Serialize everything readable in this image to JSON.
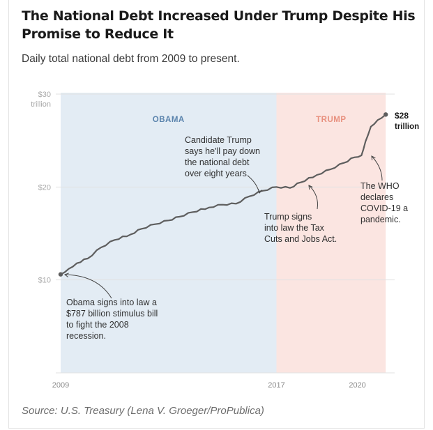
{
  "header": {
    "title": "The National Debt Increased Under Trump Despite His Promise to Reduce It",
    "subtitle": "Daily total national debt from 2009 to present."
  },
  "footer": {
    "source": "Source: U.S. Treasury (Lena V. Groeger/ProPublica)"
  },
  "colors": {
    "obama_shade": "#e3ecf4",
    "trump_shade": "#fbe5e1",
    "obama_label": "#5b84ad",
    "trump_label": "#e8907e",
    "line": "#5e5e5e",
    "grid": "#e2e2e2"
  },
  "chart_data": {
    "type": "line",
    "title": "",
    "xlabel": "",
    "ylabel": "",
    "xlim": [
      2009.0,
      2021.2
    ],
    "ylim": [
      0,
      30
    ],
    "y_ticks": [
      {
        "value": 30,
        "label": "$30",
        "sublabel": "trillion"
      },
      {
        "value": 20,
        "label": "$20"
      },
      {
        "value": 10,
        "label": "$10"
      }
    ],
    "x_ticks": [
      {
        "value": 2009.0,
        "label": "2009"
      },
      {
        "value": 2017.0,
        "label": "2017"
      },
      {
        "value": 2020.0,
        "label": "2020"
      }
    ],
    "regions": [
      {
        "label": "OBAMA",
        "start": 2009.0,
        "end": 2017.0
      },
      {
        "label": "TRUMP",
        "start": 2017.0,
        "end": 2021.05
      }
    ],
    "series": [
      {
        "x": [
          2009.0,
          2009.3,
          2009.6,
          2010.0,
          2010.5,
          2011.0,
          2011.6,
          2012.0,
          2012.5,
          2013.0,
          2013.4,
          2013.9,
          2014.5,
          2015.0,
          2015.5,
          2016.0,
          2016.5,
          2017.0,
          2017.5,
          2017.9,
          2018.5,
          2019.0,
          2019.5,
          2019.9,
          2020.15,
          2020.3,
          2020.5,
          2020.75,
          2021.05
        ],
        "y": [
          10.6,
          11.2,
          11.8,
          12.3,
          13.5,
          14.3,
          14.9,
          15.5,
          16.0,
          16.4,
          16.8,
          17.3,
          17.8,
          18.1,
          18.2,
          19.0,
          19.6,
          20.0,
          19.9,
          20.5,
          21.3,
          21.9,
          22.6,
          23.2,
          23.4,
          24.9,
          26.5,
          27.2,
          27.8
        ]
      }
    ],
    "end_label": {
      "line1": "$28",
      "line2": "trillion"
    },
    "annotations": [
      {
        "lines": [
          "Obama signs into law a",
          "$787 billion stimulus bill",
          "to fight the 2008",
          "recession."
        ]
      },
      {
        "lines": [
          "Candidate Trump",
          "says he'll pay down",
          "the national debt",
          "over eight years."
        ]
      },
      {
        "lines": [
          "Trump signs",
          "into law the Tax",
          "Cuts and Jobs Act."
        ]
      },
      {
        "lines": [
          "The WHO",
          "declares",
          "COVID-19 a",
          "pandemic."
        ]
      }
    ]
  }
}
